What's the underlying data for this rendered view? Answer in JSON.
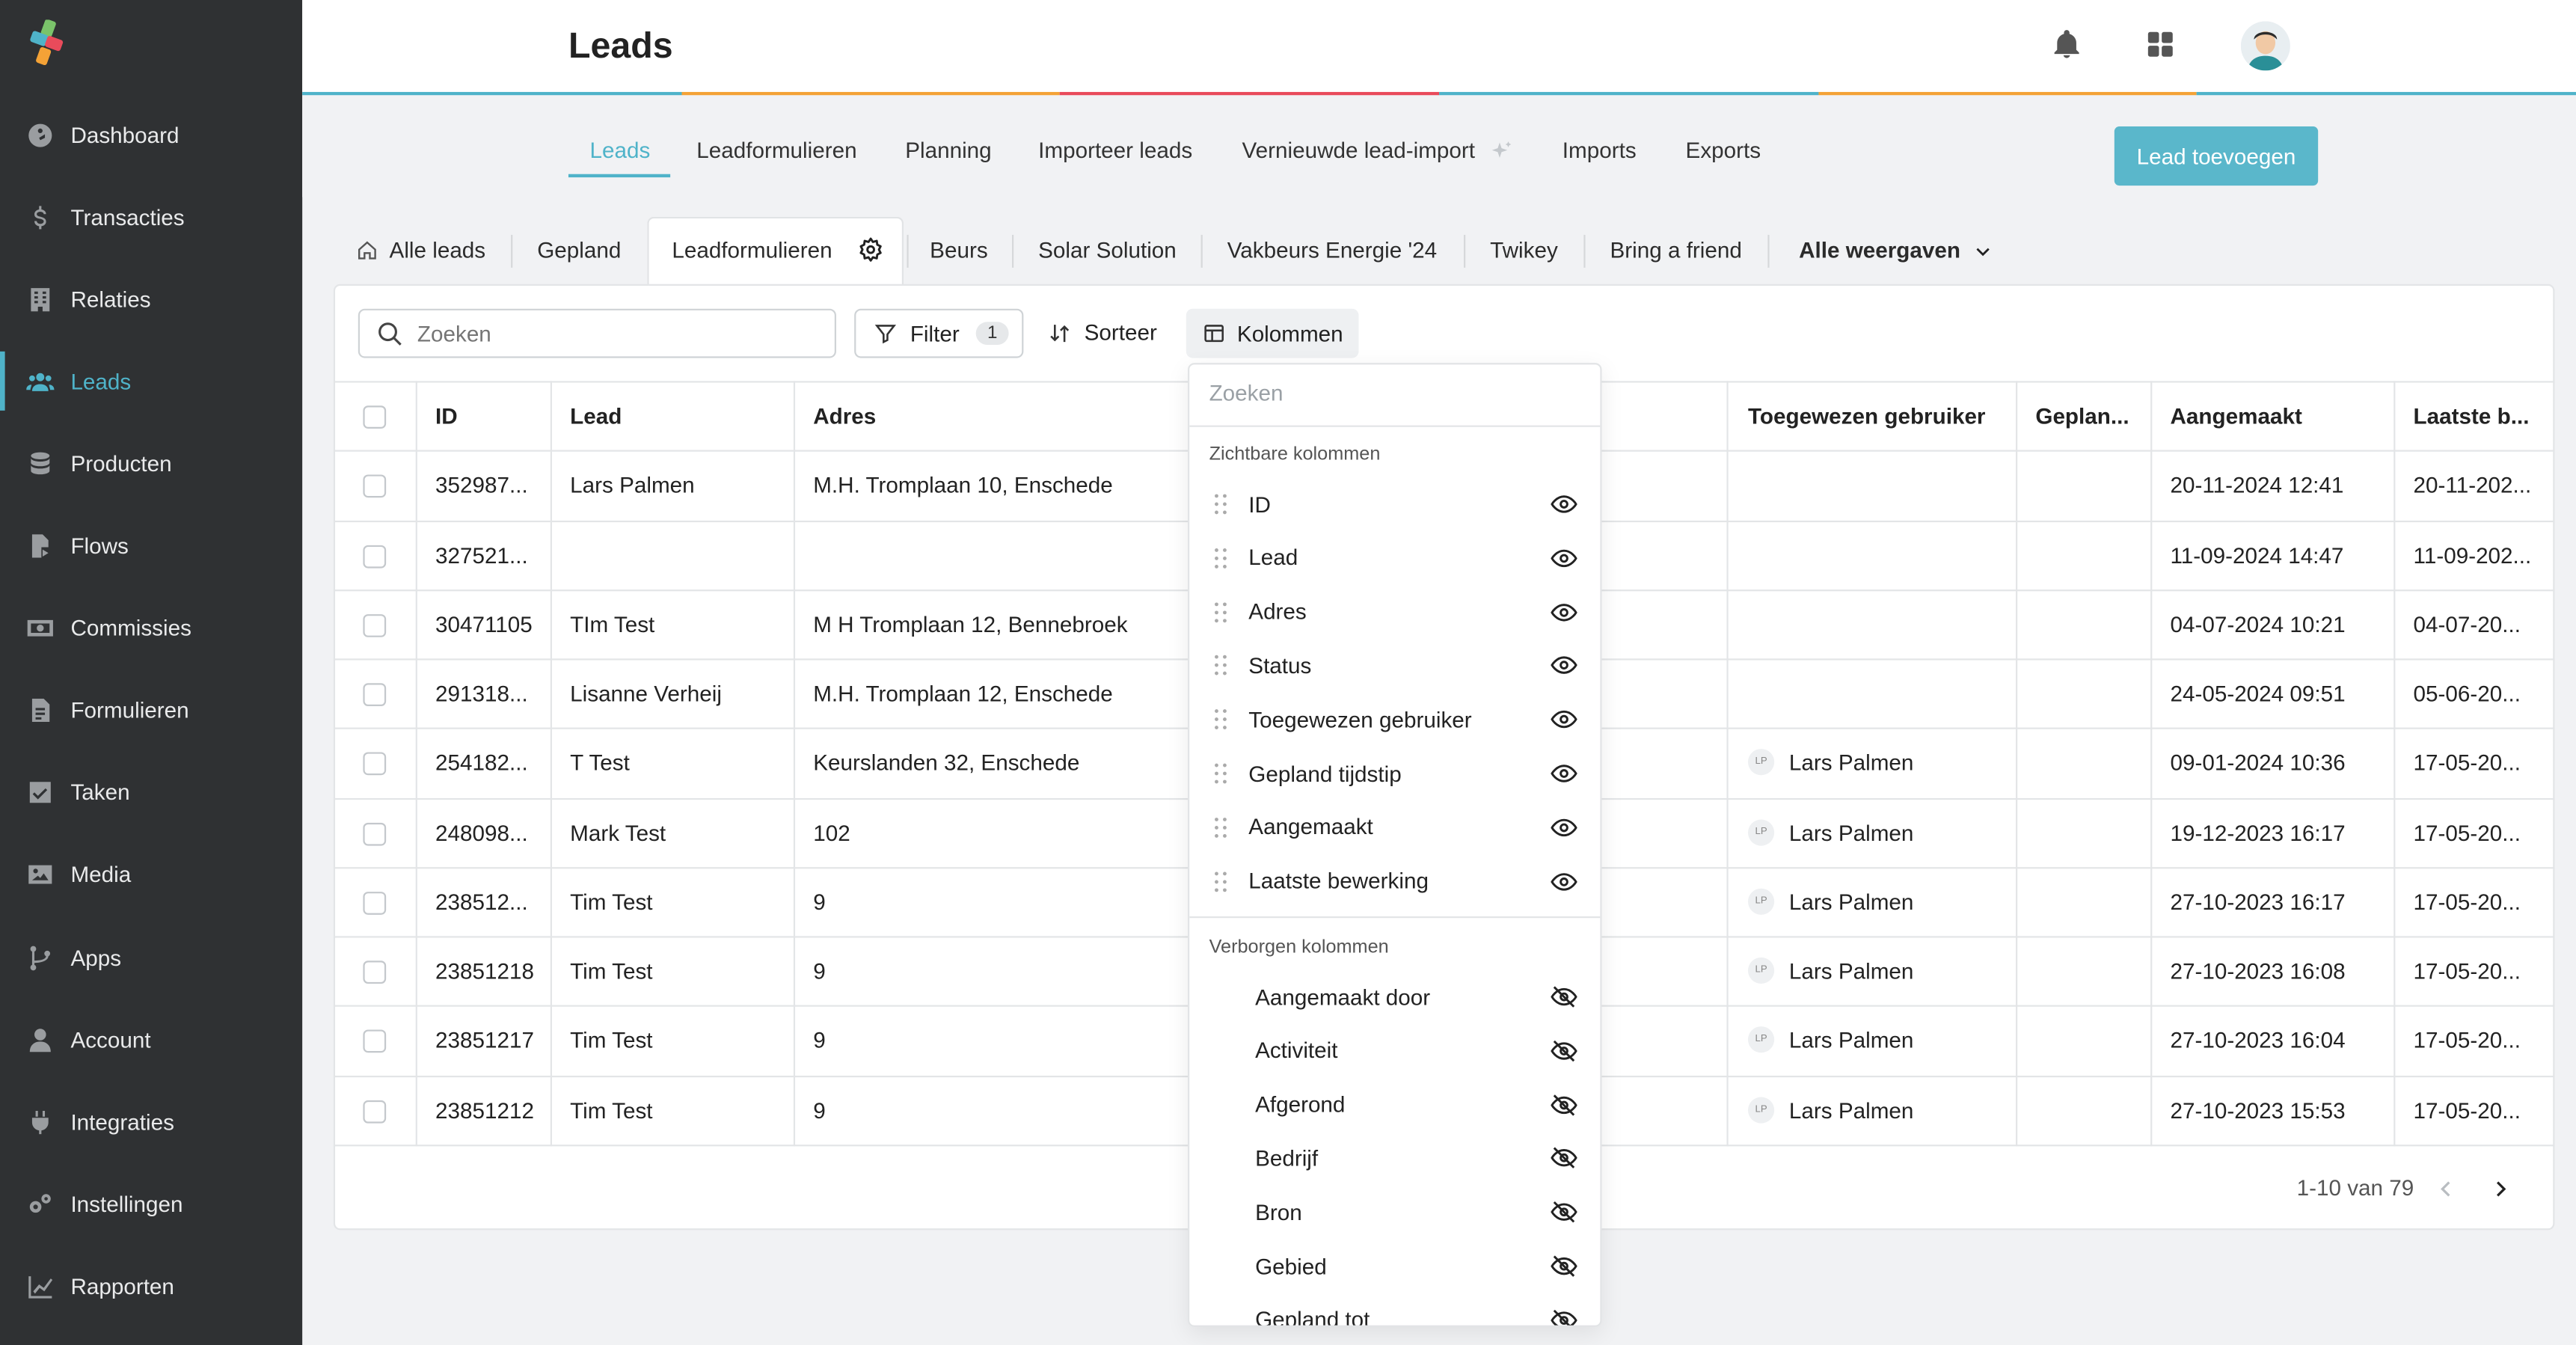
{
  "sidebar": {
    "items": [
      {
        "label": "Dashboard",
        "icon": "dashboard-icon"
      },
      {
        "label": "Transacties",
        "icon": "dollar-icon"
      },
      {
        "label": "Relaties",
        "icon": "building-icon"
      },
      {
        "label": "Leads",
        "icon": "users-icon",
        "active": true
      },
      {
        "label": "Producten",
        "icon": "database-icon"
      },
      {
        "label": "Flows",
        "icon": "file-flow-icon"
      },
      {
        "label": "Commissies",
        "icon": "money-icon"
      },
      {
        "label": "Formulieren",
        "icon": "form-icon"
      },
      {
        "label": "Taken",
        "icon": "check-square-icon"
      },
      {
        "label": "Media",
        "icon": "image-icon"
      },
      {
        "label": "Apps",
        "icon": "branch-icon"
      },
      {
        "label": "Account",
        "icon": "user-icon"
      },
      {
        "label": "Integraties",
        "icon": "plug-icon"
      },
      {
        "label": "Instellingen",
        "icon": "gears-icon"
      },
      {
        "label": "Rapporten",
        "icon": "chart-line-icon"
      }
    ]
  },
  "header": {
    "title": "Leads"
  },
  "subtabs": [
    {
      "label": "Leads",
      "active": true
    },
    {
      "label": "Leadformulieren"
    },
    {
      "label": "Planning"
    },
    {
      "label": "Importeer leads"
    },
    {
      "label": "Vernieuwde lead-import"
    },
    {
      "label": "Imports"
    },
    {
      "label": "Exports"
    }
  ],
  "add_button": "Lead toevoegen",
  "views": {
    "items": [
      "Alle leads",
      "Gepland",
      "Leadformulieren",
      "Beurs",
      "Solar Solution",
      "Vakbeurs Energie '24",
      "Twikey",
      "Bring a friend"
    ],
    "all_views": "Alle weergaven"
  },
  "toolbar": {
    "search_placeholder": "Zoeken",
    "filter_label": "Filter",
    "filter_count": "1",
    "sort_label": "Sorteer",
    "columns_label": "Kolommen"
  },
  "table": {
    "headers": [
      "ID",
      "Lead",
      "Adres",
      "Toegewezen gebruiker",
      "Geplan...",
      "Aangemaakt",
      "Laatste b..."
    ],
    "rows": [
      {
        "id": "352987...",
        "lead": "Lars Palmen",
        "adres": "M.H. Tromplaan 10, Enschede",
        "user": "",
        "created": "20-11-2024 12:41",
        "last": "20-11-202..."
      },
      {
        "id": "327521...",
        "lead": "",
        "adres": "",
        "user": "",
        "created": "11-09-2024 14:47",
        "last": "11-09-202..."
      },
      {
        "id": "30471105",
        "lead": "TIm Test",
        "adres": "M H Tromplaan 12, Bennebroek",
        "user": "",
        "created": "04-07-2024 10:21",
        "last": "04-07-20..."
      },
      {
        "id": "291318...",
        "lead": "Lisanne Verheij",
        "adres": "M.H. Tromplaan 12, Enschede",
        "user": "",
        "created": "24-05-2024 09:51",
        "last": "05-06-20..."
      },
      {
        "id": "254182...",
        "lead": "T Test",
        "adres": "Keurslanden 32, Enschede",
        "user": "Lars Palmen",
        "created": "09-01-2024 10:36",
        "last": "17-05-20..."
      },
      {
        "id": "248098...",
        "lead": "Mark Test",
        "adres": "102",
        "user": "Lars Palmen",
        "created": "19-12-2023 16:17",
        "last": "17-05-20..."
      },
      {
        "id": "238512...",
        "lead": "Tim Test",
        "adres": "9",
        "user": "Lars Palmen",
        "created": "27-10-2023 16:17",
        "last": "17-05-20..."
      },
      {
        "id": "23851218",
        "lead": "Tim Test",
        "adres": "9",
        "user": "Lars Palmen",
        "created": "27-10-2023 16:08",
        "last": "17-05-20..."
      },
      {
        "id": "23851217",
        "lead": "Tim Test",
        "adres": "9",
        "user": "Lars Palmen",
        "created": "27-10-2023 16:04",
        "last": "17-05-20..."
      },
      {
        "id": "23851212",
        "lead": "Tim Test",
        "adres": "9",
        "user": "Lars Palmen",
        "created": "27-10-2023 15:53",
        "last": "17-05-20..."
      }
    ],
    "user_initials": "LP",
    "pagination": "1-10 van 79"
  },
  "columns_menu": {
    "search_placeholder": "Zoeken",
    "visible_heading": "Zichtbare kolommen",
    "visible": [
      "ID",
      "Lead",
      "Adres",
      "Status",
      "Toegewezen gebruiker",
      "Gepland tijdstip",
      "Aangemaakt",
      "Laatste bewerking"
    ],
    "hidden_heading": "Verborgen kolommen",
    "hidden": [
      "Aangemaakt door",
      "Activiteit",
      "Afgerond",
      "Bedrijf",
      "Bron",
      "Gebied",
      "Gepland tot"
    ]
  },
  "colors": {
    "accent": "#4fb3c9",
    "sidebar_bg": "#2f3133",
    "button_bg": "#5ab7cb"
  }
}
